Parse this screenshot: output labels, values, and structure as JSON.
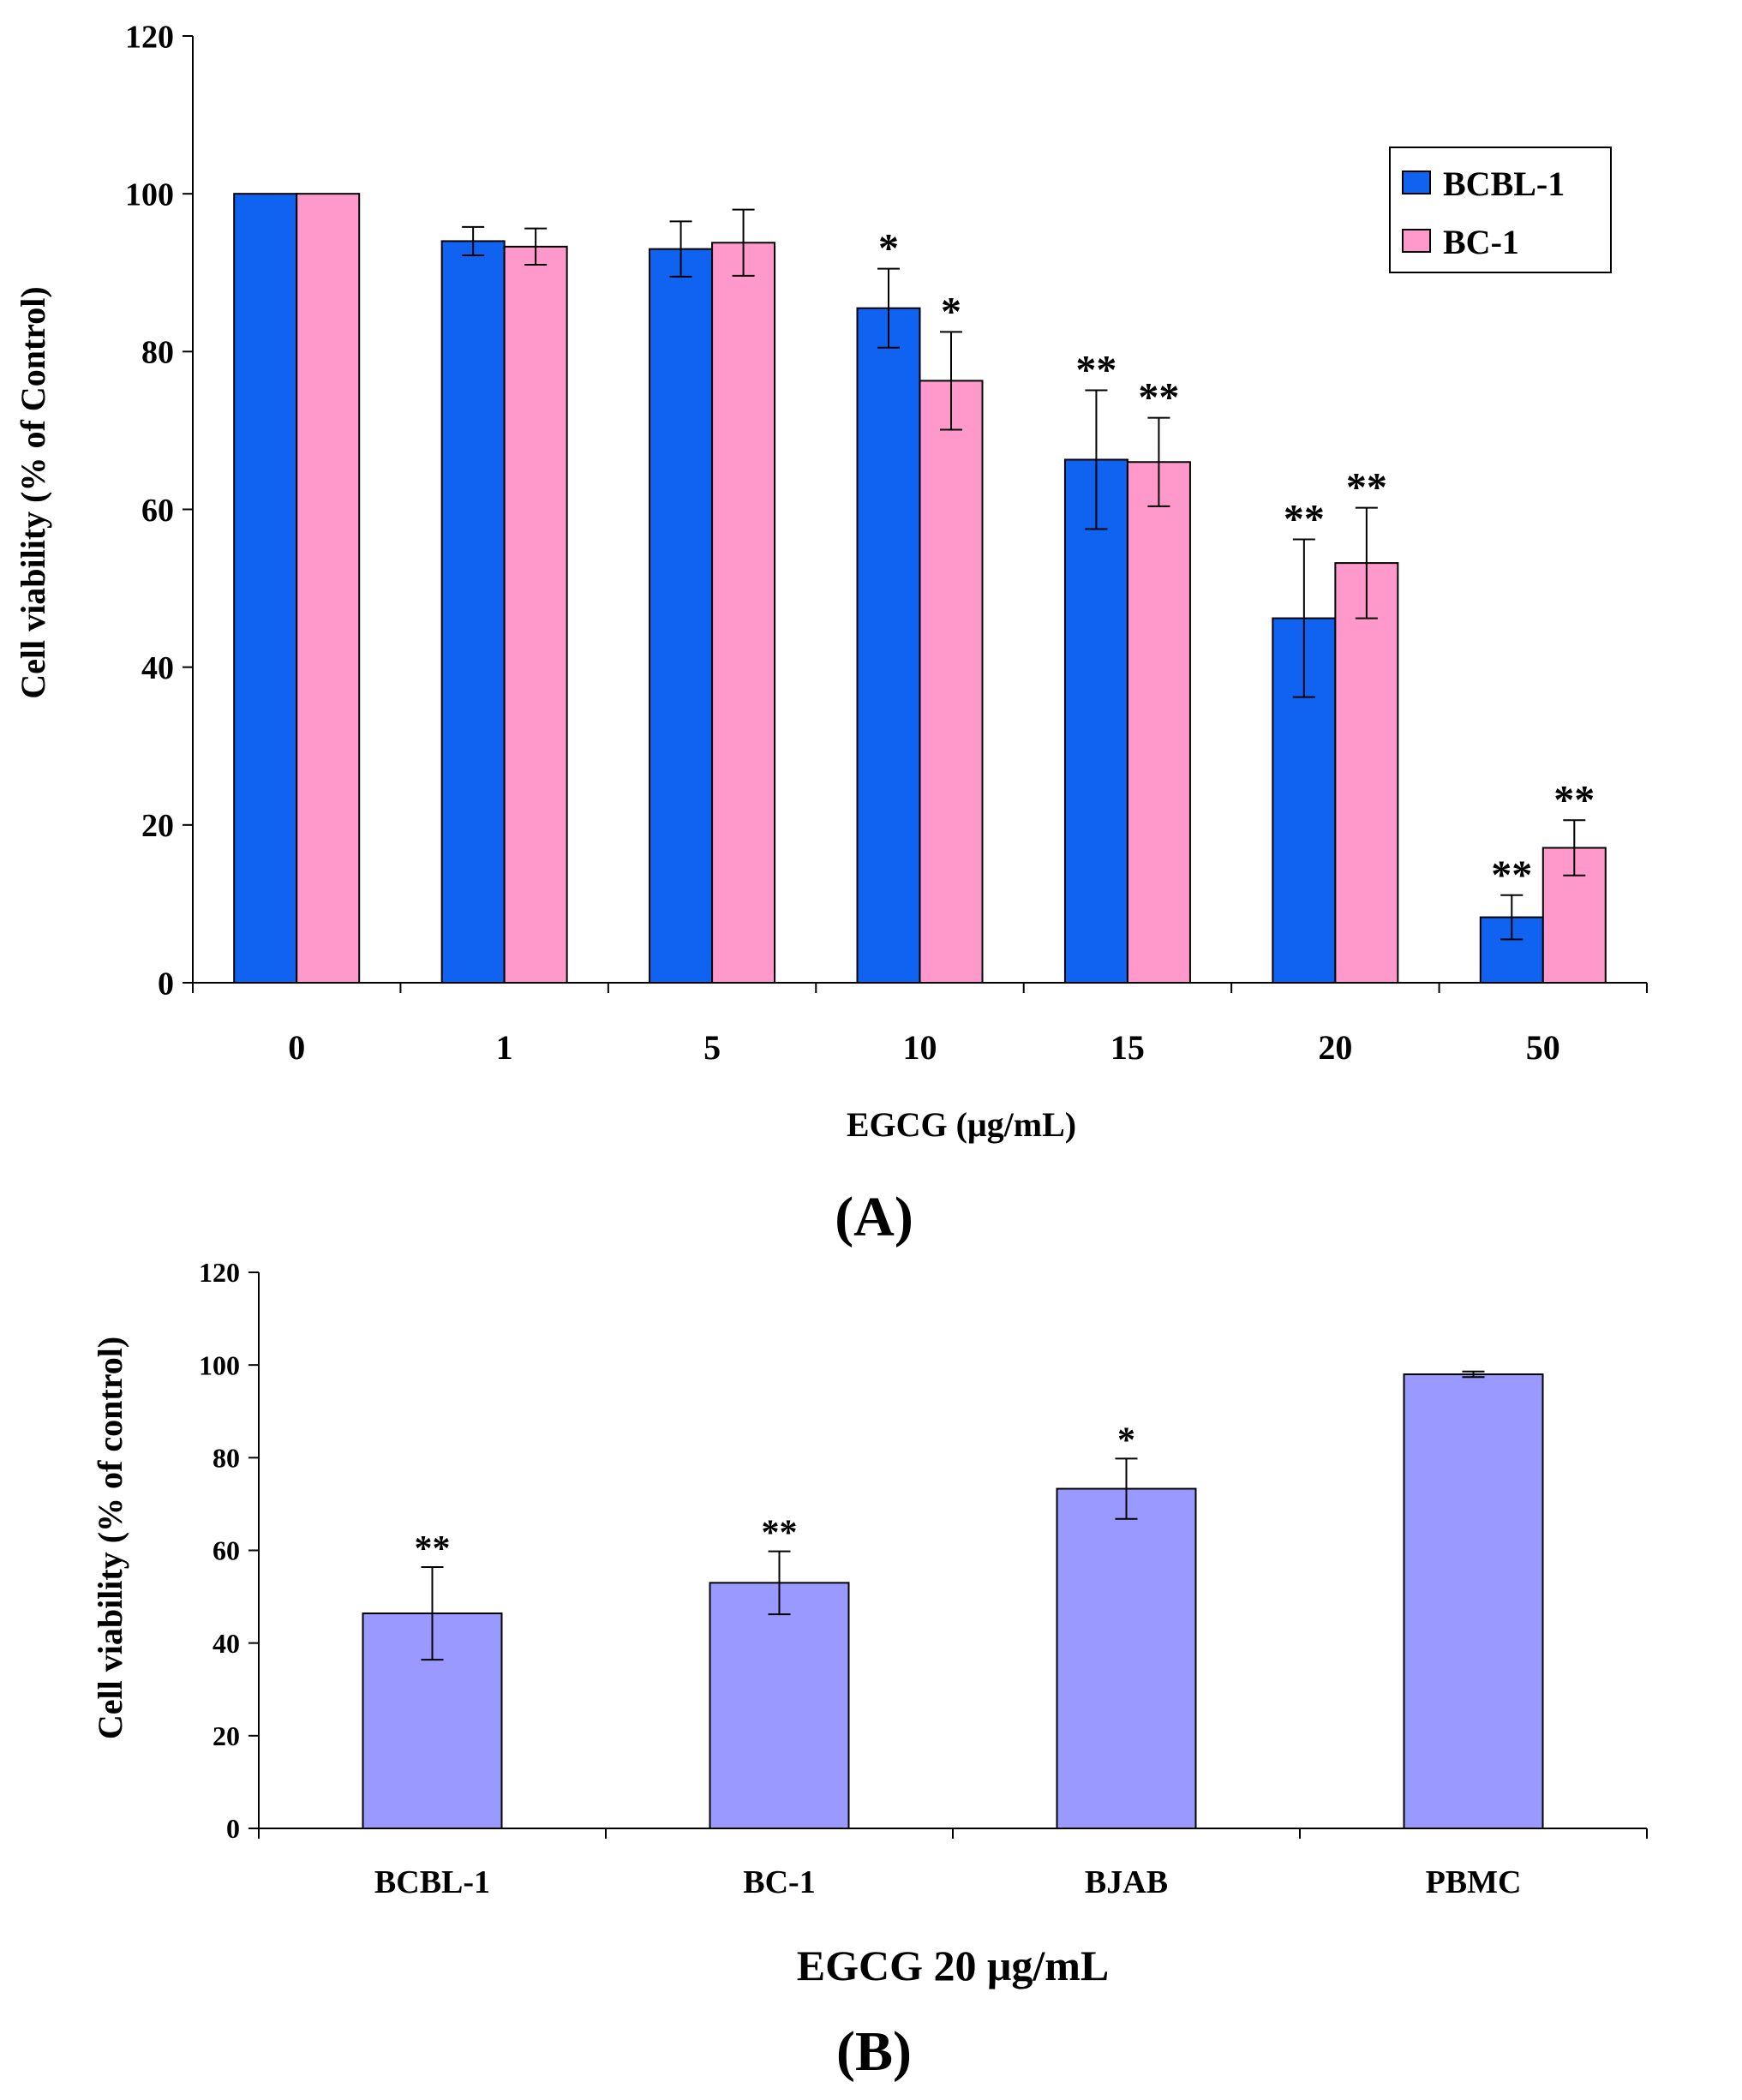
{
  "chart_data": [
    {
      "panel": "(A)",
      "type": "bar",
      "title": "",
      "xlabel": "EGCG (μg/mL)",
      "ylabel": "Cell viability (% of Control)",
      "ylim": [
        0,
        120
      ],
      "yticks": [
        0,
        20,
        40,
        60,
        80,
        100,
        120
      ],
      "categories": [
        "0",
        "1",
        "5",
        "10",
        "15",
        "20",
        "50"
      ],
      "legend_position": "top-right",
      "series": [
        {
          "name": "BCBL-1",
          "color": "#0f63f0",
          "values": [
            100,
            94,
            93,
            85.5,
            66.3,
            46.2,
            8.3
          ],
          "errors": [
            0,
            1.8,
            3.5,
            5,
            8.8,
            10,
            2.8
          ],
          "significance": [
            "",
            "",
            "",
            "*",
            "**",
            "**",
            "**"
          ]
        },
        {
          "name": "BC-1",
          "color": "#ff99cc",
          "values": [
            100,
            93.3,
            93.8,
            76.3,
            66,
            53.2,
            17.1
          ],
          "errors": [
            0,
            2.3,
            4.2,
            6.2,
            5.6,
            7,
            3.5
          ],
          "significance": [
            "",
            "",
            "",
            "*",
            "**",
            "**",
            "**"
          ]
        }
      ]
    },
    {
      "panel": "(B)",
      "type": "bar",
      "title": "",
      "xlabel": "EGCG 20 μg/mL",
      "ylabel": "Cell viability (% of control)",
      "ylim": [
        0,
        120
      ],
      "yticks": [
        0,
        20,
        40,
        60,
        80,
        100,
        120
      ],
      "categories": [
        "BCBL-1",
        "BC-1",
        "BJAB",
        "PBMC"
      ],
      "series": [
        {
          "name": "Cell viability",
          "color": "#9999ff",
          "values": [
            46.4,
            53,
            73.3,
            98
          ],
          "errors": [
            10,
            6.8,
            6.5,
            0.6
          ],
          "significance": [
            "**",
            "**",
            "*",
            ""
          ]
        }
      ]
    }
  ]
}
